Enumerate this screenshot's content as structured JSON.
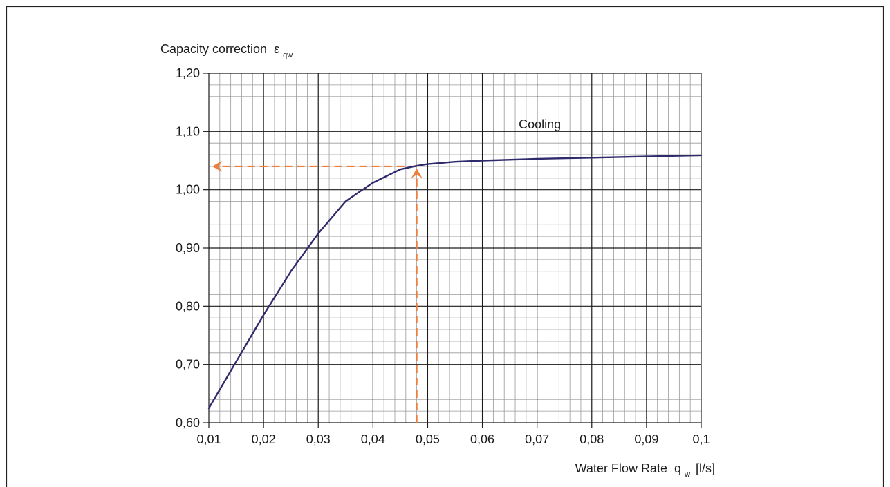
{
  "chart_data": {
    "type": "line",
    "ylabel": "Capacity correction",
    "ylabel_symbol": "ε",
    "ylabel_subscript": "qw",
    "xlabel": "Water Flow Rate",
    "xlabel_symbol": "q",
    "xlabel_subscript": "w",
    "xlabel_unit": "[l/s]",
    "xlim": [
      0.01,
      0.1
    ],
    "ylim": [
      0.6,
      1.2
    ],
    "x_major_step": 0.01,
    "y_major_step": 0.1,
    "x_minor_per_major": 5,
    "y_minor_per_major": 5,
    "grid": true,
    "x_tick_labels": [
      "0,01",
      "0,02",
      "0,03",
      "0,04",
      "0,05",
      "0,06",
      "0,07",
      "0,08",
      "0,09",
      "0,1"
    ],
    "y_tick_labels": [
      "0,60",
      "0,70",
      "0,80",
      "0,90",
      "1,00",
      "1,10",
      "1,20"
    ],
    "series": [
      {
        "name": "Cooling",
        "color": "#2e2a6b",
        "points": [
          [
            0.01,
            0.625
          ],
          [
            0.015,
            0.705
          ],
          [
            0.02,
            0.785
          ],
          [
            0.025,
            0.86
          ],
          [
            0.03,
            0.925
          ],
          [
            0.035,
            0.98
          ],
          [
            0.037,
            0.993
          ],
          [
            0.04,
            1.012
          ],
          [
            0.045,
            1.035
          ],
          [
            0.048,
            1.041
          ],
          [
            0.05,
            1.044
          ],
          [
            0.055,
            1.048
          ],
          [
            0.06,
            1.05
          ],
          [
            0.07,
            1.053
          ],
          [
            0.08,
            1.055
          ],
          [
            0.09,
            1.057
          ],
          [
            0.1,
            1.059
          ]
        ]
      }
    ],
    "annotation": {
      "color": "#ee7f3b",
      "x": 0.048,
      "y": 1.04
    },
    "colors": {
      "major_grid": "#1a1a1a",
      "minor_grid": "#9a9a9a"
    }
  }
}
